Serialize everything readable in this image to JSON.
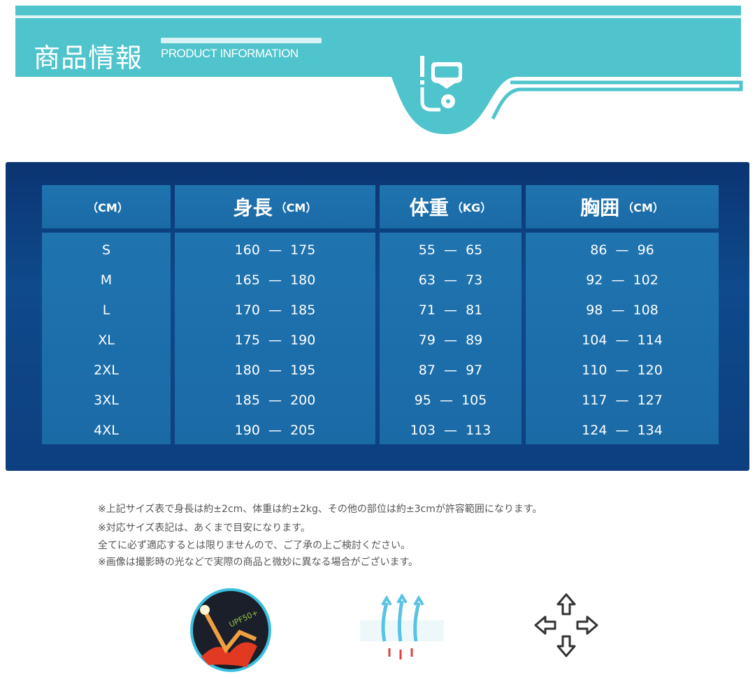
{
  "header": {
    "title_jp": "商品情報",
    "title_en": "PRODUCT INFORMATION",
    "icon": "snorkel-mask-icon",
    "color": "#4fc4cc"
  },
  "table": {
    "columns": [
      {
        "label": "",
        "unit": "（CM）"
      },
      {
        "label": "身長",
        "unit": "（CM）"
      },
      {
        "label": "体重",
        "unit": "（KG）"
      },
      {
        "label": "胸囲",
        "unit": "（CM）"
      }
    ],
    "sizes": [
      "S",
      "M",
      "L",
      "XL",
      "2XL",
      "3XL",
      "4XL"
    ],
    "height": [
      "160  —  175",
      "165  —  180",
      "170  —  185",
      "175  —  190",
      "180  —  195",
      "185  —  200",
      "190  —  205"
    ],
    "weight": [
      "55  —  65",
      "63  —  73",
      "71  —  81",
      "79  —  89",
      "87  —  97",
      "95  —  105",
      "103  —  113"
    ],
    "chest": [
      "86  —  96",
      "92  —  102",
      "98  —  108",
      "104  —  114",
      "110  —  120",
      "117  —  127",
      "124  —  134"
    ]
  },
  "notes": [
    "※上記サイズ表で身長は約±2cm、体重は約±2kg、その他の部位は約±3cmが許容範囲になります。",
    "※対応サイズ表記は、あくまで目安になります。",
    "全てに必ず適応するとは限りませんので、ご了承の上ご検討ください。",
    "※画像は撮影時の光などで実際の商品と微妙に異なる場合がございます。"
  ],
  "features": [
    {
      "icon": "uv-protection-icon",
      "badge": "UPF50+"
    },
    {
      "icon": "breathable-icon"
    },
    {
      "icon": "stretch-arrows-icon"
    }
  ]
}
